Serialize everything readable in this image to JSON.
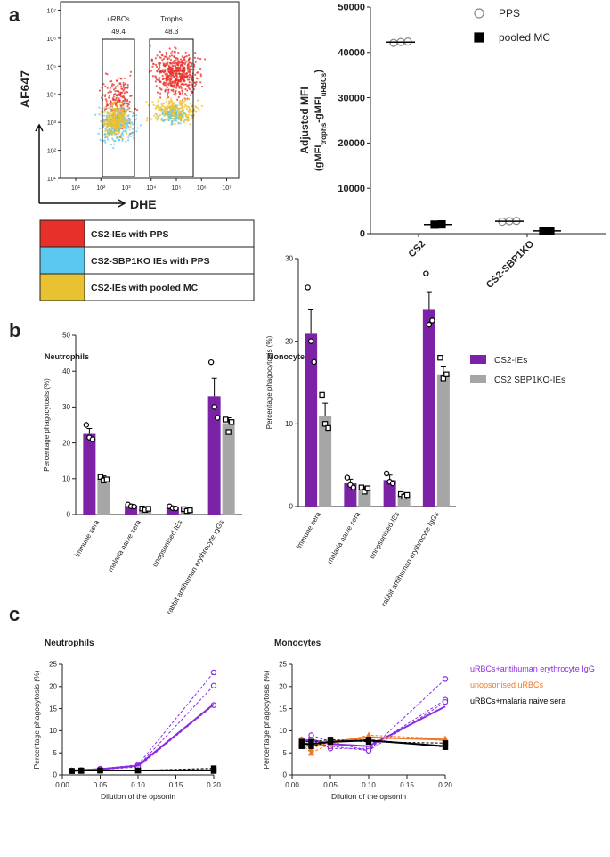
{
  "panel_labels": [
    "a",
    "b",
    "c"
  ],
  "chart_data": [
    {
      "type": "flow",
      "x_label": "DHE",
      "y_label": "AF647",
      "log": true,
      "xlim": [
        2.5,
        30000000
      ],
      "ylim": [
        10,
        20000000
      ],
      "xticks": [
        {
          "value": 10,
          "label": "10¹"
        },
        {
          "value": 100,
          "label": "10²"
        },
        {
          "value": 1000,
          "label": "10³"
        },
        {
          "value": 10000,
          "label": "10⁴"
        },
        {
          "value": 100000,
          "label": "10⁵"
        },
        {
          "value": 1000000,
          "label": "10⁶"
        },
        {
          "value": 10000000,
          "label": "10⁷"
        }
      ],
      "yticks": [
        {
          "value": 10,
          "label": "10¹"
        },
        {
          "value": 100,
          "label": "10²"
        },
        {
          "value": 1000,
          "label": "10³"
        },
        {
          "value": 10000,
          "label": "10⁴"
        },
        {
          "value": 100000,
          "label": "10⁵"
        },
        {
          "value": 1000000,
          "label": "10⁶"
        },
        {
          "value": 10000000,
          "label": "10⁷"
        }
      ],
      "gates": [
        {
          "name": "uRBCs",
          "value": 49.4
        },
        {
          "name": "Trophs",
          "value": 48.3
        }
      ],
      "series": [
        {
          "name": "CS2-IEs with PPS",
          "color": "#e8302a"
        },
        {
          "name": "CS2-SBP1KO IEs with PPS",
          "color": "#5bc8f0"
        },
        {
          "name": "CS2-IEs with pooled MC",
          "color": "#e9c232"
        }
      ]
    },
    {
      "type": "dot",
      "y_label": "Adjusted MFI",
      "y_label_sub": [
        "(gMFI",
        "trophs",
        "-gMFI",
        "uRBCs",
        ")"
      ],
      "categories": [
        "CS2",
        "CS2-SBP1KO"
      ],
      "ylim": [
        0,
        50000
      ],
      "yticks": [
        0,
        10000,
        20000,
        30000,
        40000,
        50000
      ],
      "legend": "top-right",
      "series": [
        {
          "name": "PPS",
          "marker": "open-circle",
          "color": "#888888",
          "values": [
            [
              42100,
              42300,
              42400
            ],
            [
              2650,
              2750,
              2800
            ]
          ]
        },
        {
          "name": "pooled MC",
          "marker": "square",
          "color": "#000000",
          "values": [
            [
              2000,
              2050
            ],
            [
              600,
              650
            ]
          ]
        }
      ]
    },
    {
      "type": "bar",
      "title": "Neutrophils",
      "y_label": "Percentage phagocytosis (%)",
      "categories": [
        "immune sera",
        "malaria naive sera",
        "unopsonised IEs",
        "rabbit antihuman erythrocyte IgGs"
      ],
      "ylim": [
        0,
        50
      ],
      "yticks": [
        0,
        10,
        20,
        30,
        40,
        50
      ],
      "series": [
        {
          "color": "#7b22a6",
          "values": [
            22.5,
            2.5,
            2,
            33
          ],
          "errors": [
            1.5,
            0.4,
            0.3,
            5
          ],
          "points": [
            [
              25,
              21.5,
              21
            ],
            [
              2.8,
              2.3,
              2.2
            ],
            [
              2.3,
              1.8,
              1.7
            ],
            [
              42.5,
              30,
              27
            ]
          ]
        },
        {
          "color": "#a6a6a6",
          "values": [
            10,
            1.5,
            1.2,
            25.5
          ],
          "errors": [
            0.8,
            0.3,
            0.3,
            1.5
          ],
          "points": [
            [
              10.5,
              9.5,
              9.8
            ],
            [
              1.7,
              1.3,
              1.6
            ],
            [
              1.5,
              1,
              1.2
            ],
            [
              26.5,
              23,
              25.8
            ]
          ]
        }
      ]
    },
    {
      "type": "bar",
      "title": "Monocytes",
      "y_label": "Percentage phagocytosis (%)",
      "categories": [
        "immune sera",
        "malaria naive sera",
        "unopsonised IEs",
        "rabbit antihuman erythrocyte IgGs"
      ],
      "ylim": [
        0,
        30
      ],
      "yticks": [
        0,
        10,
        20,
        30
      ],
      "legend": "right",
      "series": [
        {
          "name": "CS2-IEs",
          "color": "#7b22a6",
          "values": [
            21,
            2.8,
            3.2,
            23.8
          ],
          "errors": [
            2.8,
            0.5,
            0.6,
            2.2
          ],
          "points": [
            [
              26.5,
              20,
              17.5
            ],
            [
              3.5,
              2.6,
              2.3
            ],
            [
              4,
              3,
              2.8
            ],
            [
              28.2,
              22,
              22.5
            ]
          ]
        },
        {
          "name": "CS2 SBP1KO-IEs",
          "color": "#a6a6a6",
          "values": [
            11,
            2,
            1.4,
            16
          ],
          "errors": [
            1.5,
            0.4,
            0.2,
            1
          ],
          "points": [
            [
              13.5,
              10,
              9.5
            ],
            [
              2.3,
              1.8,
              2.2
            ],
            [
              1.5,
              1.2,
              1.4
            ],
            [
              18,
              15.5,
              16
            ]
          ]
        }
      ]
    },
    {
      "type": "line",
      "title": "Neutrophils",
      "y_label": "Percentage phagocytosis (%)",
      "x_label": "Dilution of the opsonin",
      "x": [
        0.0125,
        0.025,
        0.05,
        0.1,
        0.2
      ],
      "xlim": [
        0,
        0.2
      ],
      "ylim": [
        0,
        25
      ],
      "xticks": [
        {
          "value": 0,
          "label": "0.00"
        },
        {
          "value": 0.05,
          "label": "0.05"
        },
        {
          "value": 0.1,
          "label": "0.10"
        },
        {
          "value": 0.15,
          "label": "0.15"
        },
        {
          "value": 0.2,
          "label": "0.20"
        }
      ],
      "yticks": [
        0,
        5,
        10,
        15,
        20,
        25
      ],
      "series": [
        {
          "color": "#8a2be2",
          "marker": "circle",
          "values": [
            1,
            1.1,
            1.3,
            2.1,
            16
          ],
          "replicates": [
            [
              1,
              1.1,
              1.4,
              2.3,
              23.2
            ],
            [
              1,
              1.1,
              1.3,
              2,
              20.2
            ],
            [
              1,
              1,
              1.2,
              1.8,
              15.8
            ]
          ]
        },
        {
          "color": "#f07828",
          "marker": "triangle",
          "values": [
            1,
            1,
            1,
            1,
            1.1
          ],
          "replicates": [
            [
              1,
              1,
              1.1,
              1.1,
              1.2
            ],
            [
              0.9,
              1,
              1,
              1,
              1
            ]
          ]
        },
        {
          "color": "#000000",
          "marker": "square",
          "values": [
            0.9,
            1,
            1,
            1,
            1
          ],
          "replicates": [
            [
              0.9,
              1,
              1,
              1,
              1.5
            ],
            [
              0.9,
              0.9,
              1,
              1,
              0.9
            ]
          ]
        }
      ]
    },
    {
      "type": "line",
      "title": "Monocytes",
      "y_label": "Percentage phagocytosis (%)",
      "x_label": "Dilution of the opsonin",
      "x": [
        0.0125,
        0.025,
        0.05,
        0.1,
        0.2
      ],
      "xlim": [
        0,
        0.2
      ],
      "ylim": [
        0,
        25
      ],
      "legend": "right",
      "xticks": [
        {
          "value": 0,
          "label": "0.00"
        },
        {
          "value": 0.05,
          "label": "0.05"
        },
        {
          "value": 0.1,
          "label": "0.10"
        },
        {
          "value": 0.15,
          "label": "0.15"
        },
        {
          "value": 0.2,
          "label": "0.20"
        }
      ],
      "yticks": [
        0,
        5,
        10,
        15,
        20,
        25
      ],
      "series": [
        {
          "name": "uRBCs+antihuman erythrocyte IgG",
          "color": "#8a2be2",
          "marker": "circle",
          "values": [
            7.5,
            8,
            7,
            6.5,
            15.5
          ],
          "replicates": [
            [
              7,
              9,
              7.5,
              5.5,
              21.7
            ],
            [
              7.5,
              8,
              6,
              6,
              17
            ],
            [
              8,
              7.5,
              6.5,
              5.5,
              16.5
            ]
          ]
        },
        {
          "name": "unopsonised uRBCs",
          "color": "#f07828",
          "marker": "triangle",
          "values": [
            7.5,
            6.5,
            7.5,
            8.5,
            8
          ],
          "replicates": [
            [
              7,
              5,
              7,
              9,
              8.2
            ],
            [
              8,
              6,
              7.5,
              8.7,
              7.8
            ]
          ]
        },
        {
          "name": "uRBCs+malaria naive sera",
          "color": "#000000",
          "marker": "square",
          "values": [
            7,
            7,
            7.5,
            7.8,
            6.5
          ],
          "replicates": [
            [
              6.5,
              6.5,
              7.5,
              8,
              6.3
            ],
            [
              7.5,
              7.5,
              8,
              7.5,
              7.2
            ]
          ]
        }
      ]
    }
  ]
}
